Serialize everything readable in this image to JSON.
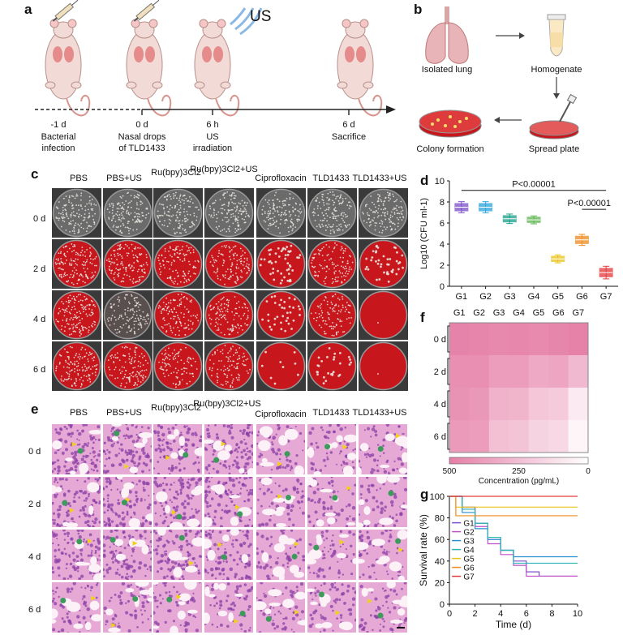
{
  "panels": {
    "a": "a",
    "b": "b",
    "c": "c",
    "d": "d",
    "e": "e",
    "f": "f",
    "g": "g"
  },
  "panel_a": {
    "us_label": "US",
    "timeline": [
      {
        "time": "-1 d",
        "desc1": "Bacterial",
        "desc2": "infection"
      },
      {
        "time": "0 d",
        "desc1": "Nasal drops",
        "desc2": "of TLD1433"
      },
      {
        "time": "6 h",
        "desc1": "US",
        "desc2": "irradiation"
      },
      {
        "time": "6 d",
        "desc1": "Sacrifice",
        "desc2": ""
      }
    ]
  },
  "panel_b": {
    "steps": [
      "Isolated lung",
      "Homogenate",
      "Spread plate",
      "Colony formation"
    ]
  },
  "groups_c": [
    "PBS",
    "PBS+US",
    "Ru(bpy)3Cl2",
    "Ru(bpy)3Cl2+US",
    "Ciprofloxacin",
    "TLD1433",
    "TLD1433+US"
  ],
  "days": [
    "0 d",
    "2 d",
    "4 d",
    "6 d"
  ],
  "panel_d": {
    "p1": "P<0.00001",
    "p2": "P<0.00001"
  },
  "panel_f": {
    "groups": [
      "G1",
      "G2",
      "G3",
      "G4",
      "G5",
      "G6",
      "G7"
    ],
    "colorbar_ticks": [
      "500",
      "250",
      "0"
    ],
    "colorbar_label": "Concentration (pg/mL)",
    "values": [
      [
        480,
        470,
        460,
        465,
        455,
        470,
        490
      ],
      [
        430,
        430,
        380,
        380,
        330,
        350,
        270
      ],
      [
        420,
        400,
        300,
        290,
        220,
        200,
        80
      ],
      [
        390,
        380,
        250,
        230,
        170,
        150,
        40
      ]
    ]
  },
  "colors": {
    "agar": "#c8161d",
    "bacteria": "#e6e2dc",
    "he_pink": "#e6a9d6",
    "he_purple": "#8a3fa6"
  },
  "chart_data": [
    {
      "type": "box",
      "ylabel": "Log10 (CFU ml-1)",
      "categories": [
        "G1",
        "G2",
        "G3",
        "G4",
        "G5",
        "G6",
        "G7"
      ],
      "values": [
        7.5,
        7.5,
        6.4,
        6.3,
        2.6,
        4.4,
        1.3
      ],
      "spread": [
        0.35,
        0.35,
        0.3,
        0.25,
        0.25,
        0.35,
        0.4
      ],
      "colors": [
        "#7b4fc9",
        "#2aa4dc",
        "#1aa08a",
        "#5ab44a",
        "#e9c215",
        "#ef8a1e",
        "#e3393b"
      ],
      "ylim": [
        0,
        10
      ],
      "yticks": [
        0,
        2,
        4,
        6,
        8,
        10
      ]
    },
    {
      "type": "line",
      "xlabel": "Time (d)",
      "ylabel": "Survival rate (%)",
      "xlim": [
        0,
        10
      ],
      "ylim": [
        0,
        100
      ],
      "xticks": [
        0,
        2,
        4,
        6,
        8,
        10
      ],
      "yticks": [
        0,
        20,
        40,
        60,
        80,
        100
      ],
      "series": [
        {
          "name": "G1",
          "color": "#7b4fc9",
          "points": [
            [
              0,
              100
            ],
            [
              1,
              100
            ],
            [
              1,
              90
            ],
            [
              2,
              90
            ],
            [
              2,
              75
            ],
            [
              3,
              75
            ],
            [
              3,
              60
            ],
            [
              4,
              60
            ],
            [
              4,
              50
            ],
            [
              5,
              50
            ],
            [
              5,
              40
            ],
            [
              6,
              40
            ],
            [
              6,
              30
            ],
            [
              7,
              30
            ],
            [
              7,
              26
            ],
            [
              10,
              26
            ]
          ]
        },
        {
          "name": "G2",
          "color": "#c24fc9",
          "points": [
            [
              0,
              100
            ],
            [
              1,
              100
            ],
            [
              1,
              88
            ],
            [
              2,
              88
            ],
            [
              2,
              72
            ],
            [
              3,
              72
            ],
            [
              3,
              56
            ],
            [
              4,
              56
            ],
            [
              4,
              46
            ],
            [
              5,
              46
            ],
            [
              5,
              36
            ],
            [
              6,
              36
            ],
            [
              6,
              26
            ],
            [
              10,
              26
            ]
          ]
        },
        {
          "name": "G3",
          "color": "#2a8fd0",
          "points": [
            [
              0,
              100
            ],
            [
              1,
              100
            ],
            [
              1,
              85
            ],
            [
              2,
              85
            ],
            [
              2,
              70
            ],
            [
              3,
              70
            ],
            [
              3,
              60
            ],
            [
              4,
              60
            ],
            [
              4,
              50
            ],
            [
              5,
              50
            ],
            [
              5,
              44
            ],
            [
              10,
              44
            ]
          ]
        },
        {
          "name": "G4",
          "color": "#2fb3b3",
          "points": [
            [
              0,
              100
            ],
            [
              1,
              100
            ],
            [
              1,
              88
            ],
            [
              2,
              88
            ],
            [
              2,
              75
            ],
            [
              3,
              75
            ],
            [
              3,
              62
            ],
            [
              4,
              62
            ],
            [
              4,
              50
            ],
            [
              5,
              50
            ],
            [
              5,
              38
            ],
            [
              10,
              38
            ]
          ]
        },
        {
          "name": "G5",
          "color": "#e9c215",
          "points": [
            [
              0,
              100
            ],
            [
              0.5,
              100
            ],
            [
              0.5,
              90
            ],
            [
              10,
              90
            ]
          ]
        },
        {
          "name": "G6",
          "color": "#ef8a1e",
          "points": [
            [
              0,
              100
            ],
            [
              0.5,
              100
            ],
            [
              0.5,
              82
            ],
            [
              10,
              82
            ]
          ]
        },
        {
          "name": "G7",
          "color": "#e3393b",
          "points": [
            [
              0,
              100
            ],
            [
              10,
              100
            ]
          ]
        }
      ]
    }
  ]
}
